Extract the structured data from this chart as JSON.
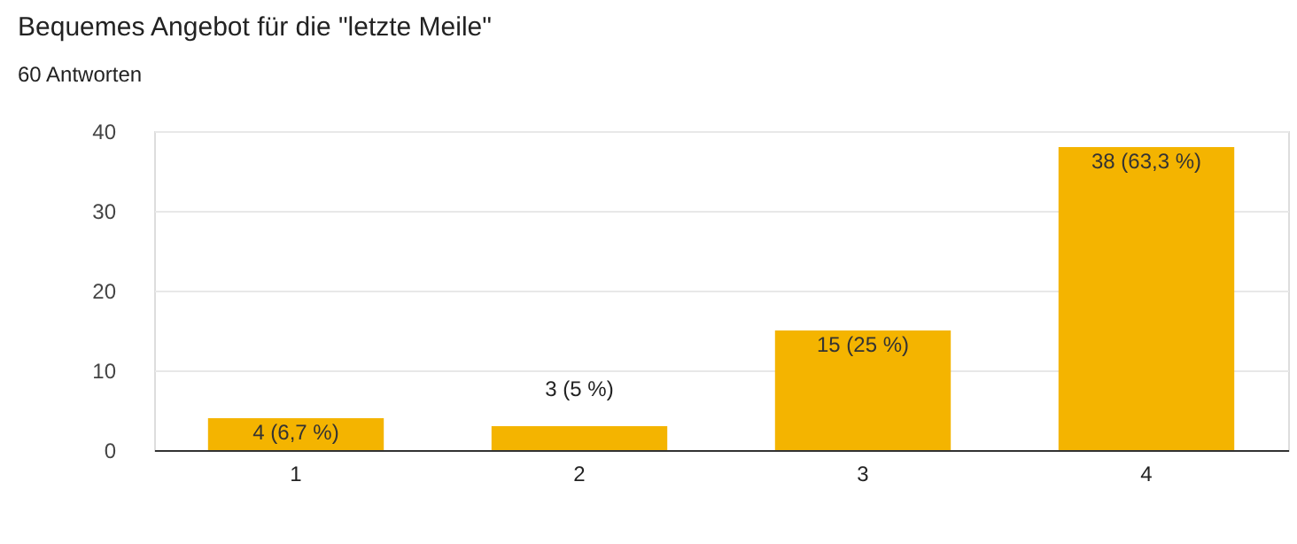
{
  "chart_data": {
    "type": "bar",
    "title": "Bequemes Angebot für die \"letzte Meile\"",
    "subtitle": "60 Antworten",
    "categories": [
      "1",
      "2",
      "3",
      "4"
    ],
    "values": [
      4,
      3,
      15,
      38
    ],
    "value_labels": [
      "4 (6,7 %)",
      "3 (5 %)",
      "15 (25 %)",
      "38 (63,3 %)"
    ],
    "color": "#f4b400",
    "ylim": [
      0,
      40
    ],
    "yticks": [
      0,
      10,
      20,
      30,
      40
    ],
    "grid": "y"
  }
}
